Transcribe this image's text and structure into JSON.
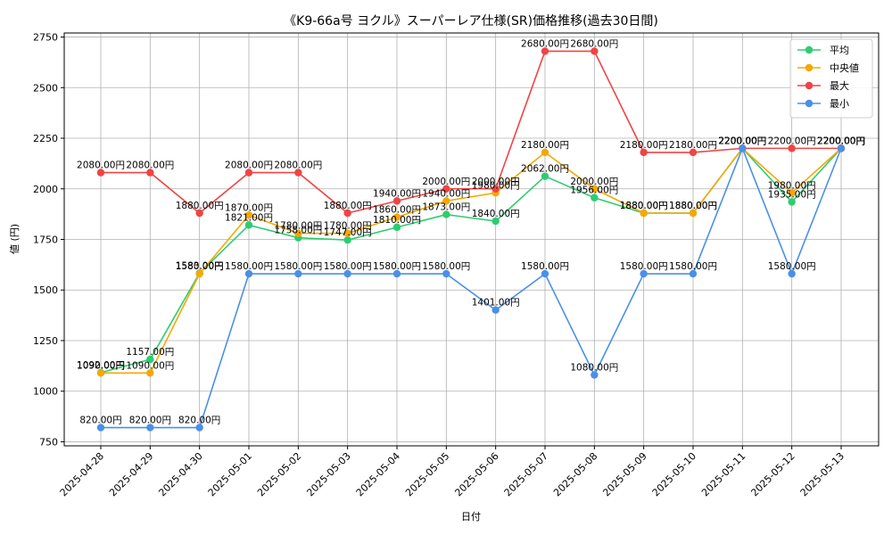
{
  "chart_data": {
    "type": "line",
    "title": "《K9-66a号 ヨクル》スーパーレア仕様(SR)価格推移(過去30日間)",
    "xlabel": "日付",
    "ylabel": "値 (円)",
    "ylim": [
      730,
      2770
    ],
    "yticks": [
      750,
      1000,
      1250,
      1500,
      1750,
      2000,
      2250,
      2500,
      2750
    ],
    "grid": true,
    "legend_position": "top-right",
    "value_suffix": "円",
    "categories": [
      "2025-04-28",
      "2025-04-29",
      "2025-04-30",
      "2025-05-01",
      "2025-05-02",
      "2025-05-03",
      "2025-05-04",
      "2025-05-05",
      "2025-05-06",
      "2025-05-07",
      "2025-05-08",
      "2025-05-09",
      "2025-05-10",
      "2025-05-11",
      "2025-05-12",
      "2025-05-13"
    ],
    "series": [
      {
        "name": "平均",
        "color": "#2ecc71",
        "values": [
          1092,
          1157,
          1583,
          1821,
          1758,
          1747,
          1810,
          1873,
          1840,
          2062,
          1956,
          1880,
          1880,
          2200,
          1935,
          2200
        ]
      },
      {
        "name": "中央値",
        "color": "#f5a800",
        "values": [
          1090,
          1090,
          1580,
          1870,
          1780,
          1780,
          1860,
          1940,
          1980,
          2180,
          2000,
          1880,
          1880,
          2200,
          1980,
          2200
        ]
      },
      {
        "name": "最大",
        "color": "#ef4444",
        "values": [
          2080,
          2080,
          1880,
          2080,
          2080,
          1880,
          1940,
          2000,
          2000,
          2680,
          2680,
          2180,
          2180,
          2200,
          2200,
          2200
        ]
      },
      {
        "name": "最小",
        "color": "#4a90e8",
        "values": [
          820,
          820,
          820,
          1580,
          1580,
          1580,
          1580,
          1580,
          1401,
          1580,
          1080,
          1580,
          1580,
          2200,
          1580,
          2200
        ]
      }
    ]
  }
}
